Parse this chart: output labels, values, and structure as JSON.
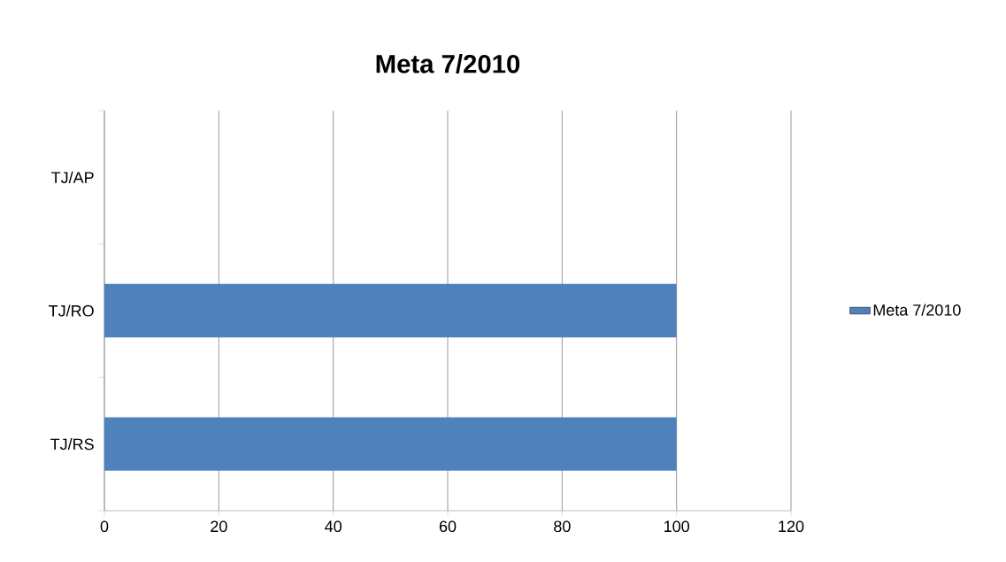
{
  "chart_data": {
    "type": "bar",
    "orientation": "horizontal",
    "title": "Meta 7/2010",
    "categories": [
      "TJ/AP",
      "TJ/RO",
      "TJ/RS"
    ],
    "series": [
      {
        "name": "Meta 7/2010",
        "color": "#4f81bd",
        "values": [
          null,
          100,
          100
        ]
      }
    ],
    "xlim": [
      0,
      120
    ],
    "xticks": [
      0,
      20,
      40,
      60,
      80,
      100,
      120
    ],
    "grid": "x",
    "legend": "right"
  }
}
